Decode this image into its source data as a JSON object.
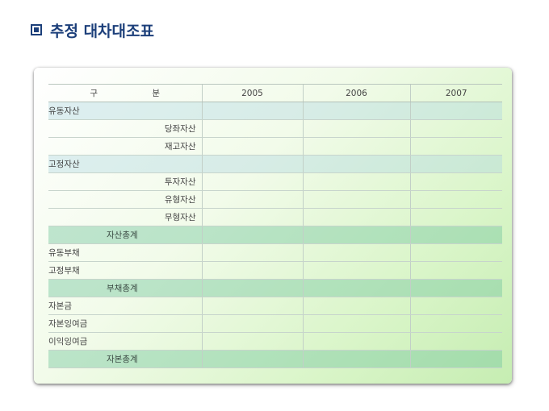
{
  "title": "추정 대차대조표",
  "table": {
    "header": [
      "구 분",
      "2005",
      "2006",
      "2007"
    ],
    "rows": [
      {
        "label": "유동자산",
        "values": [
          "",
          "",
          ""
        ]
      },
      {
        "label": "당좌자산",
        "values": [
          "",
          "",
          ""
        ]
      },
      {
        "label": "재고자산",
        "values": [
          "",
          "",
          ""
        ]
      },
      {
        "label": "고정자산",
        "values": [
          "",
          "",
          ""
        ]
      },
      {
        "label": "투자자산",
        "values": [
          "",
          "",
          ""
        ]
      },
      {
        "label": "유형자산",
        "values": [
          "",
          "",
          ""
        ]
      },
      {
        "label": "무형자산",
        "values": [
          "",
          "",
          ""
        ]
      },
      {
        "label": "자산총계",
        "values": [
          "",
          "",
          ""
        ]
      },
      {
        "label": "유동부채",
        "values": [
          "",
          "",
          ""
        ]
      },
      {
        "label": "고정부채",
        "values": [
          "",
          "",
          ""
        ]
      },
      {
        "label": "부채총계",
        "values": [
          "",
          "",
          ""
        ]
      },
      {
        "label": "자본금",
        "values": [
          "",
          "",
          ""
        ]
      },
      {
        "label": "자본잉여금",
        "values": [
          "",
          "",
          ""
        ]
      },
      {
        "label": "이익잉여금",
        "values": [
          "",
          "",
          ""
        ]
      },
      {
        "label": "자본총계",
        "values": [
          "",
          "",
          ""
        ]
      }
    ]
  }
}
